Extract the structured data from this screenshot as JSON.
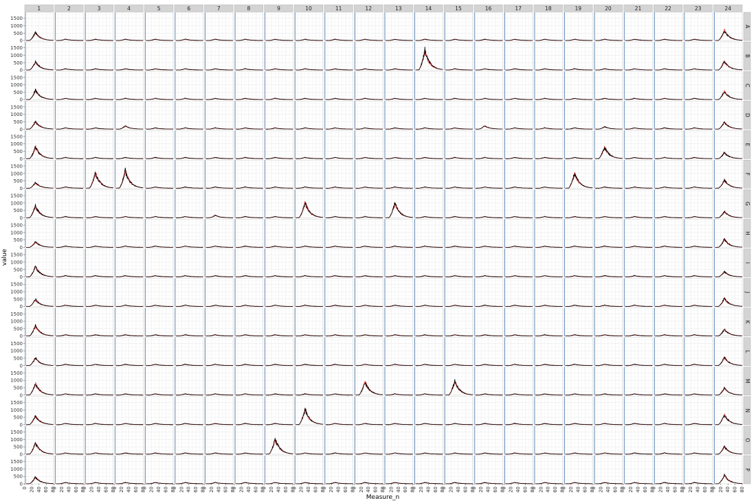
{
  "chart_data": {
    "type": "line",
    "xlabel": "Measure_n",
    "ylabel": "value",
    "xlim": [
      0,
      80
    ],
    "ylim": [
      0,
      1900
    ],
    "x_ticks": [
      "0",
      "20",
      "40",
      "60",
      "80"
    ],
    "y_ticks": [
      "0",
      "500",
      "1000",
      "1500"
    ],
    "grid": true,
    "col_facets": [
      "1",
      "2",
      "3",
      "4",
      "5",
      "6",
      "7",
      "8",
      "9",
      "10",
      "11",
      "12",
      "13",
      "14",
      "15",
      "16",
      "17",
      "18",
      "19",
      "20",
      "21",
      "22",
      "23",
      "24"
    ],
    "row_facets": [
      "A",
      "B",
      "C",
      "D",
      "E",
      "F",
      "G",
      "H",
      "I",
      "J",
      "K",
      "L",
      "M",
      "N",
      "O",
      "P"
    ],
    "vline_x": 2,
    "series_colors": {
      "primary": "#000000",
      "replicates": "#e8393c",
      "vline": "#4a7fb5"
    },
    "peak_note": "Approximate peak heights (value units) per facet; each curve rises from ~0 to a peak near x≈30 and decays to a low baseline by x≈80.",
    "peaks": {
      "default": 90,
      "col1": {
        "A": 550,
        "B": 560,
        "C": 650,
        "D": 520,
        "E": 800,
        "F": 380,
        "G": 800,
        "H": 380,
        "I": 700,
        "J": 480,
        "K": 700,
        "L": 520,
        "M": 800,
        "N": 600,
        "O": 760,
        "P": 460
      },
      "col24": {
        "A": 700,
        "B": 600,
        "C": 560,
        "D": 480,
        "E": 420,
        "F": 560,
        "G": 430,
        "H": 560,
        "I": 360,
        "J": 560,
        "K": 460,
        "L": 560,
        "M": 480,
        "N": 680,
        "O": 520,
        "P": 580
      },
      "special": [
        {
          "col": "14",
          "row": "B",
          "value": 1350
        },
        {
          "col": "3",
          "row": "F",
          "value": 1050
        },
        {
          "col": "4",
          "row": "F",
          "value": 1200
        },
        {
          "col": "19",
          "row": "F",
          "value": 1020
        },
        {
          "col": "20",
          "row": "E",
          "value": 800
        },
        {
          "col": "10",
          "row": "G",
          "value": 1050
        },
        {
          "col": "13",
          "row": "G",
          "value": 1000
        },
        {
          "col": "12",
          "row": "M",
          "value": 920
        },
        {
          "col": "15",
          "row": "M",
          "value": 950
        },
        {
          "col": "10",
          "row": "N",
          "value": 1050
        },
        {
          "col": "9",
          "row": "O",
          "value": 1050
        },
        {
          "col": "4",
          "row": "D",
          "value": 220
        },
        {
          "col": "16",
          "row": "D",
          "value": 230
        },
        {
          "col": "20",
          "row": "D",
          "value": 170
        },
        {
          "col": "7",
          "row": "G",
          "value": 170
        }
      ]
    }
  }
}
